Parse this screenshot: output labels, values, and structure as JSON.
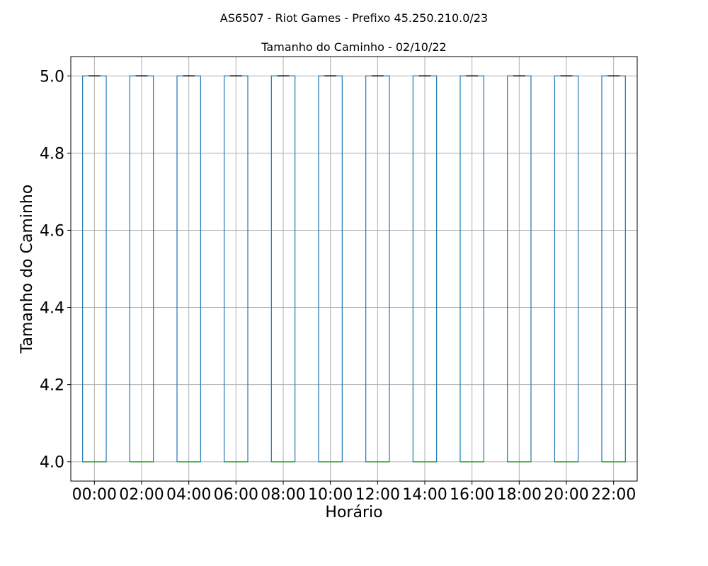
{
  "chart_data": {
    "type": "boxplot",
    "suptitle": "AS6507 - Riot Games - Prefixo 45.250.210.0/23",
    "title": "Tamanho do Caminho - 02/10/22",
    "xlabel": "Horário",
    "ylabel": "Tamanho do Caminho",
    "ylim": [
      3.95,
      5.05
    ],
    "yticks": [
      4.0,
      4.2,
      4.4,
      4.6,
      4.8,
      5.0
    ],
    "ytick_labels": [
      "4.0",
      "4.2",
      "4.4",
      "4.6",
      "4.8",
      "5.0"
    ],
    "grid": true,
    "categories": [
      "00:00",
      "02:00",
      "04:00",
      "06:00",
      "08:00",
      "10:00",
      "12:00",
      "14:00",
      "16:00",
      "18:00",
      "20:00",
      "22:00"
    ],
    "boxes": [
      {
        "min": 4,
        "q1": 4,
        "median": 4,
        "q3": 5,
        "max": 5
      },
      {
        "min": 4,
        "q1": 4,
        "median": 4,
        "q3": 5,
        "max": 5
      },
      {
        "min": 4,
        "q1": 4,
        "median": 4,
        "q3": 5,
        "max": 5
      },
      {
        "min": 4,
        "q1": 4,
        "median": 4,
        "q3": 5,
        "max": 5
      },
      {
        "min": 4,
        "q1": 4,
        "median": 4,
        "q3": 5,
        "max": 5
      },
      {
        "min": 4,
        "q1": 4,
        "median": 4,
        "q3": 5,
        "max": 5
      },
      {
        "min": 4,
        "q1": 4,
        "median": 4,
        "q3": 5,
        "max": 5
      },
      {
        "min": 4,
        "q1": 4,
        "median": 4,
        "q3": 5,
        "max": 5
      },
      {
        "min": 4,
        "q1": 4,
        "median": 4,
        "q3": 5,
        "max": 5
      },
      {
        "min": 4,
        "q1": 4,
        "median": 4,
        "q3": 5,
        "max": 5
      },
      {
        "min": 4,
        "q1": 4,
        "median": 4,
        "q3": 5,
        "max": 5
      },
      {
        "min": 4,
        "q1": 4,
        "median": 4,
        "q3": 5,
        "max": 5
      }
    ],
    "colors": {
      "box": "#1f77b4",
      "median": "#2ca02c",
      "cap": "#000000",
      "grid": "#b0b0b0",
      "axes": "#000000"
    }
  }
}
